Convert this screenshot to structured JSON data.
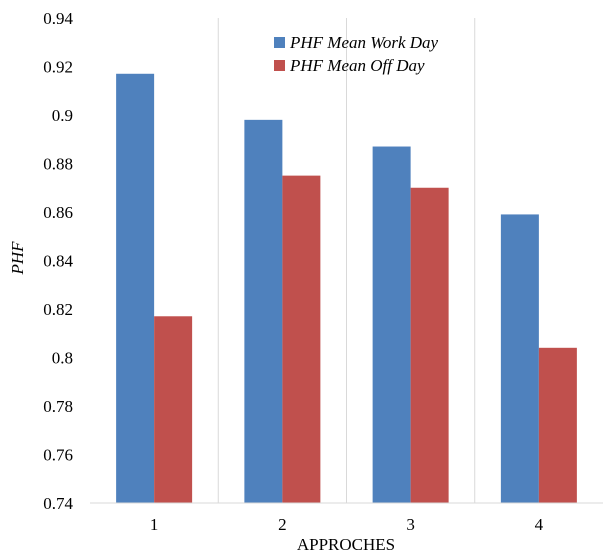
{
  "chart_data": {
    "type": "bar",
    "title": "",
    "xlabel": "APPROCHES",
    "ylabel": "PHF",
    "categories": [
      "1",
      "2",
      "3",
      "4"
    ],
    "ylim": [
      0.74,
      0.94
    ],
    "yticks": [
      "0.74",
      "0.76",
      "0.78",
      "0.8",
      "0.82",
      "0.84",
      "0.86",
      "0.88",
      "0.9",
      "0.92",
      "0.94"
    ],
    "grid": "vertical category separators",
    "legend_position": "top-center",
    "series": [
      {
        "name": "PHF Mean Work Day",
        "color": "#4F81BD",
        "values": [
          0.917,
          0.898,
          0.887,
          0.859
        ]
      },
      {
        "name": "PHF Mean Off Day",
        "color": "#C0504D",
        "values": [
          0.817,
          0.875,
          0.87,
          0.804
        ]
      }
    ]
  }
}
